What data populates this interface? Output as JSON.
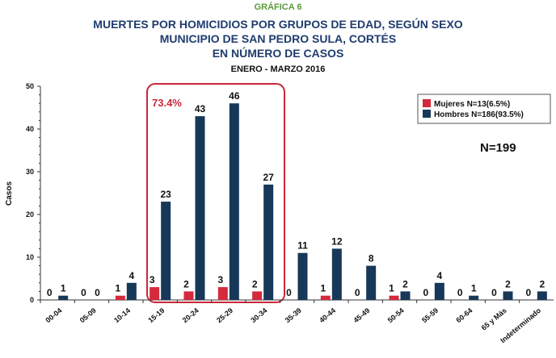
{
  "chart_data": {
    "type": "bar",
    "supertitle": "GRÁFICA 6",
    "title": [
      "MUERTES POR HOMICIDIOS POR GRUPOS DE EDAD, SEGÚN SEXO",
      "MUNICIPIO DE SAN PEDRO SULA, CORTÉS",
      "EN NÚMERO DE CASOS"
    ],
    "subtitle": "ENERO - MARZO 2016",
    "ylabel": "Casos",
    "categories": [
      "00-04",
      "05-09",
      "10-14",
      "15-19",
      "20-24",
      "25-29",
      "30-34",
      "35-39",
      "40-44",
      "45-49",
      "50-54",
      "55-59",
      "60-64",
      "65 y Más",
      "Indeterminado"
    ],
    "series": [
      {
        "name": "Mujeres N=13(6.5%)",
        "color": "#d42a3c",
        "values": [
          0,
          0,
          1,
          3,
          2,
          3,
          2,
          0,
          1,
          0,
          1,
          0,
          0,
          0,
          0
        ]
      },
      {
        "name": "Hombres N=186(93.5%)",
        "color": "#173858",
        "values": [
          1,
          0,
          4,
          23,
          43,
          46,
          27,
          11,
          12,
          8,
          2,
          4,
          1,
          2,
          2
        ]
      }
    ],
    "ylim": [
      0,
      50
    ],
    "yticks": [
      0,
      10,
      20,
      30,
      40,
      50
    ],
    "annotations": [
      "73.4%",
      "N=199"
    ],
    "legend": "upper right"
  }
}
